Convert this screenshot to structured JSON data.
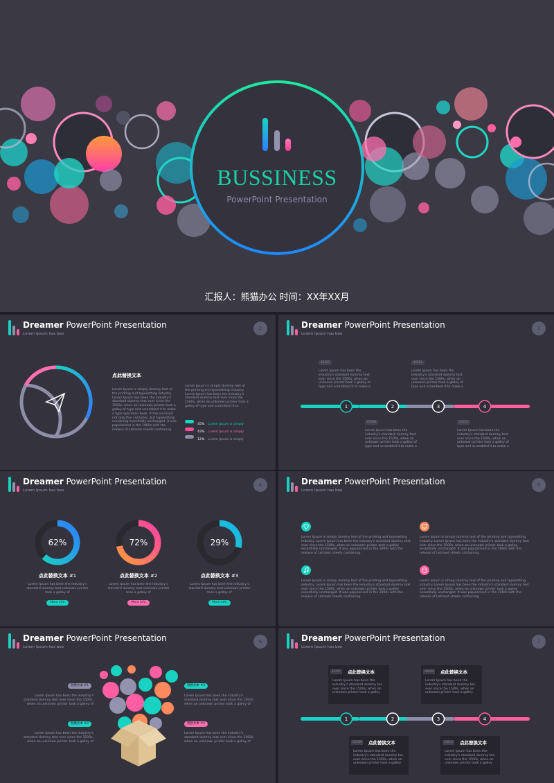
{
  "cover": {
    "title": "BUSSINESS",
    "subtitle": "PowerPoint Presentation",
    "reporter_line": "汇报人：熊猫办公    时间：XX年XX月"
  },
  "slide_header": {
    "title_bold": "Dreamer",
    "title_rest": " PowerPoint Presentation",
    "subtitle": "Lorem Ipsum has bee",
    "subtitle_alt": "Lorem Ipsum has bee"
  },
  "slide2": {
    "number": "2",
    "heading": "点此替换文本",
    "body_left": "Lorem Ipsum is simply dummy text of the printing and typesetting industry. Lorem Ipsum has been the industry's standard dummy text ever since the 1500s, when an unknown printer took a galley of type and scrambled it to make a type specimen book. It has survived not only five centuries, but typesetting, remaining essentially unchanged. It was popularised in the 1960s with the release of Letraset sheets containing.",
    "body_right": "Lorem Ipsum is simply dummy text of the printing and typesetting industry. Lorem Ipsum has been the industry's standard dummy text ever since the 1500s, when an unknown printer took a galley of type and scrambled it to",
    "legend": [
      {
        "percent": "45%",
        "label": "Lorem Ipsum is simply",
        "color": "#19d3c2"
      },
      {
        "percent": "43%",
        "label": "Lorem Ipsum is simply",
        "color": "#ff4f9b"
      },
      {
        "percent": "12%",
        "label": "Lorem Ipsum is simply",
        "color": "#8e8ea8"
      }
    ]
  },
  "slide3": {
    "number": "3",
    "steps": [
      "1",
      "2",
      "3",
      "4"
    ],
    "top_items": [
      {
        "date": "15/07",
        "text": "Lorem Ipsum has been the industry's standard dummy text ever since the 1500s, when an unknown printer took a galley of type and scrambled it to make a"
      },
      {
        "date": "10/11",
        "text": "Lorem Ipsum has been the industry's standard dummy text ever since the 1500s, when an unknown printer took a galley of type and scrambled it to make a"
      }
    ],
    "bottom_items": [
      {
        "date": "07/08",
        "text": "Lorem Ipsum has been the industry's standard dummy text ever since the 1500s, when an unknown printer took a galley of type and scrambled it to make a"
      },
      {
        "date": "25/12",
        "text": "Lorem Ipsum has been the industry's standard dummy text ever since the 1500s, when an unknown printer took a galley of type and scrambled it to make a"
      }
    ]
  },
  "slide4": {
    "number": "4",
    "donuts": [
      {
        "percent": "62%",
        "value": 0.62,
        "label": "点此替换文本",
        "index": " #1",
        "text": "Lorem Ipsum has been the industry's standard dummy text unknown printer took a galley of",
        "button": "More info",
        "button_color": "#19d3c2"
      },
      {
        "percent": "72%",
        "value": 0.72,
        "label": "点此替换文本",
        "index": " #2",
        "text": "Lorem Ipsum has been the industry's standard dummy text unknown printer took a galley of",
        "button": "More info",
        "button_color": "#ff6fb0"
      },
      {
        "percent": "29%",
        "value": 0.29,
        "label": "点此替换文本",
        "index": " #3",
        "text": "Lorem Ipsum has been the industry's standard dummy text unknown printer took a galley of",
        "button": "More info",
        "button_color": "#19d3c2"
      }
    ]
  },
  "slide5": {
    "number": "5",
    "items": [
      {
        "icon": "diamond-icon",
        "text": "Lorem Ipsum is simply dummy text of the printing and typesetting industry. Lorem Ipsum has been the industry's standard dummy text ever since the 1500s, when an unknown printer took a galley essentially unchanged. It was popularised in the 1960s with the release of Letraset sheets containing."
      },
      {
        "icon": "monitor-icon",
        "text": "Lorem Ipsum is simply dummy text of the printing and typesetting industry. Lorem Ipsum has been the industry's standard dummy text ever since the 1500s, when an unknown printer took a galley essentially unchanged. It was popularised in the 1960s with the release of Letraset sheets containing."
      },
      {
        "icon": "music-icon",
        "text": "Lorem Ipsum is simply dummy text of the printing and typesetting industry. Lorem Ipsum has been the industry's standard dummy text ever since the 1500s, when an unknown printer took a galley essentially unchanged. It was popularised in the 1960s with the release of Letraset sheets containing."
      },
      {
        "icon": "palette-icon",
        "text": "Lorem Ipsum is simply dummy text of the printing and typesetting industry. Lorem Ipsum has been the industry's standard dummy text ever since the 1500s, when an unknown printer took a galley essentially unchanged. It was popularised in the 1960s with the release of Letraset sheets containing."
      }
    ]
  },
  "slide6": {
    "number": "6",
    "tags": [
      {
        "label": "替换文本 #1",
        "text": "Lorem Ipsum has been the industry's standard dummy text ever since the 1500s, when an unknown printer took a galley of",
        "color": "#8e8ea8"
      },
      {
        "label": "替换文本 #2",
        "text": "Lorem Ipsum has been the industry's standard dummy text ever since the 1500s, when an unknown printer took a galley of",
        "color": "#19d3c2"
      },
      {
        "label": "替换文本 #3",
        "text": "Lorem Ipsum has been the industry's standard dummy text ever since the 1500s, when an unknown printer took a galley of",
        "color": "#19d3c2"
      },
      {
        "label": "替换文本 #4",
        "text": "Lorem Ipsum has been the industry's standard dummy text ever since the 1500s, when an unknown printer took a galley of",
        "color": "#ff6fb0"
      }
    ]
  },
  "slide7": {
    "number": "7",
    "steps": [
      "1",
      "2",
      "3",
      "4"
    ],
    "cards": [
      {
        "date": "15/07",
        "heading": "点此替换文本",
        "text": "Lorem Ipsum has been the industry's standard dummy tex ever since the 1500s, when an unknown printer took a galley"
      },
      {
        "date": "08/09",
        "heading": "点此替换文本",
        "text": "Lorem Ipsum has been the industry's standard dummy tex ever since the 1500s, when an unknown printer took a galley"
      },
      {
        "date": "25/08",
        "heading": "点此替换文本",
        "text": "Lorem Ipsum has been the industry's standard dummy tex ever since the 1500s, when an unknown printer took a galley"
      },
      {
        "date": "18/12",
        "heading": "点此替换文本",
        "text": "Lorem Ipsum has been the industry's standard dummy tex ever since the 1500s, when an unknown printer took a galley"
      }
    ]
  }
}
